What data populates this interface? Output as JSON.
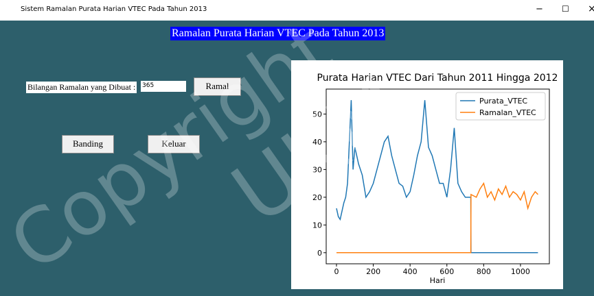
{
  "window": {
    "title": "Sistem Ramalan Purata Harian VTEC Pada Tahun 2013",
    "controls": [
      "−",
      "☐",
      "×"
    ]
  },
  "heading": "Ramalan Purata Harian VTEC Pada Tahun 2013",
  "form": {
    "label": "Bilangan Ramalan yang Dibuat :",
    "entry": "365",
    "buttons": [
      "Ramal",
      "Banding",
      "Keluar"
    ]
  },
  "watermark": [
    "Copyright",
    "UKM"
  ],
  "chart_data": {
    "type": "line",
    "title": "Purata Harian VTEC Dari Tahun 2011 Hingga 2012",
    "x_label": "Hari",
    "xlim": [
      -56,
      1157
    ],
    "xticks": [
      0,
      200,
      400,
      600,
      800,
      1000
    ],
    "ylim": [
      -4,
      59
    ],
    "yticks": [
      0,
      10,
      20,
      30,
      40,
      50
    ],
    "legend": "upper right",
    "series": [
      {
        "name": "Purata_VTEC",
        "color": "#1f77b4",
        "x": [
          0,
          10,
          20,
          30,
          40,
          50,
          60,
          70,
          80,
          90,
          100,
          120,
          140,
          160,
          180,
          200,
          220,
          240,
          260,
          280,
          300,
          320,
          340,
          360,
          380,
          400,
          420,
          440,
          460,
          480,
          500,
          520,
          540,
          560,
          580,
          600,
          620,
          640,
          660,
          680,
          700,
          730,
          731,
          1095
        ],
        "values": [
          16,
          13,
          12,
          15,
          18,
          20,
          25,
          40,
          55,
          30,
          38,
          32,
          28,
          20,
          22,
          25,
          30,
          35,
          40,
          42,
          35,
          30,
          25,
          24,
          20,
          22,
          28,
          35,
          40,
          55,
          38,
          35,
          30,
          25,
          25,
          20,
          30,
          45,
          25,
          22,
          20,
          20,
          0,
          0
        ]
      },
      {
        "name": "Ramalan_VTEC",
        "color": "#ff7f0e",
        "x": [
          0,
          730,
          731,
          760,
          780,
          800,
          820,
          840,
          860,
          880,
          900,
          920,
          940,
          960,
          980,
          1000,
          1020,
          1040,
          1060,
          1080,
          1095
        ],
        "values": [
          0,
          0,
          21,
          20,
          23,
          25,
          20,
          22,
          19,
          23,
          21,
          24,
          20,
          22,
          21,
          19,
          22,
          16,
          20,
          22,
          21
        ]
      }
    ]
  }
}
